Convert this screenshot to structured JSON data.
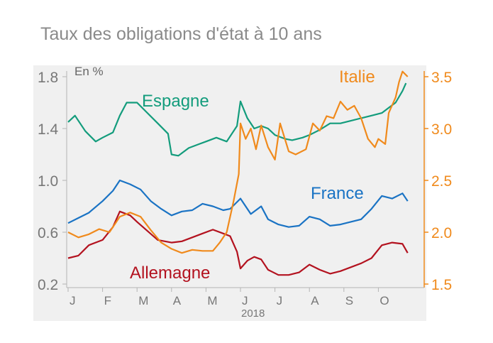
{
  "chart_data": {
    "type": "line",
    "title": "Taux des obligations d'état à 10 ans",
    "unit_label": "En %",
    "xlabel": "2018",
    "x_ticks": [
      "J",
      "F",
      "M",
      "A",
      "M",
      "J",
      "J",
      "A",
      "S",
      "O"
    ],
    "left_axis": {
      "ticks": [
        "0.2",
        "0.6",
        "1.0",
        "1.4",
        "1.8"
      ],
      "range": [
        0.2,
        1.8
      ]
    },
    "right_axis": {
      "ticks": [
        "1.5",
        "2.0",
        "2.5",
        "3.0",
        "3.5"
      ],
      "range": [
        1.5,
        3.5
      ],
      "color": "#f08a1c"
    },
    "grid": false,
    "series": [
      {
        "name": "Espagne",
        "axis": "left",
        "color": "#139c7c",
        "points": [
          [
            0,
            1.45
          ],
          [
            0.2,
            1.5
          ],
          [
            0.5,
            1.38
          ],
          [
            0.8,
            1.3
          ],
          [
            1.0,
            1.33
          ],
          [
            1.3,
            1.37
          ],
          [
            1.5,
            1.5
          ],
          [
            1.7,
            1.6
          ],
          [
            2.0,
            1.6
          ],
          [
            2.3,
            1.52
          ],
          [
            2.6,
            1.44
          ],
          [
            2.9,
            1.36
          ],
          [
            3.0,
            1.2
          ],
          [
            3.2,
            1.19
          ],
          [
            3.5,
            1.25
          ],
          [
            3.8,
            1.28
          ],
          [
            4.0,
            1.3
          ],
          [
            4.3,
            1.33
          ],
          [
            4.6,
            1.3
          ],
          [
            4.9,
            1.42
          ],
          [
            5.0,
            1.61
          ],
          [
            5.2,
            1.48
          ],
          [
            5.4,
            1.4
          ],
          [
            5.6,
            1.42
          ],
          [
            5.8,
            1.4
          ],
          [
            6.0,
            1.35
          ],
          [
            6.3,
            1.32
          ],
          [
            6.5,
            1.31
          ],
          [
            6.8,
            1.33
          ],
          [
            7.0,
            1.35
          ],
          [
            7.3,
            1.39
          ],
          [
            7.6,
            1.44
          ],
          [
            7.9,
            1.44
          ],
          [
            8.2,
            1.46
          ],
          [
            8.5,
            1.48
          ],
          [
            8.8,
            1.5
          ],
          [
            9.1,
            1.52
          ],
          [
            9.3,
            1.56
          ],
          [
            9.5,
            1.6
          ],
          [
            9.7,
            1.69
          ],
          [
            9.8,
            1.75
          ]
        ]
      },
      {
        "name": "France",
        "axis": "left",
        "color": "#1a73c4",
        "points": [
          [
            0,
            0.67
          ],
          [
            0.3,
            0.71
          ],
          [
            0.6,
            0.75
          ],
          [
            1.0,
            0.84
          ],
          [
            1.3,
            0.92
          ],
          [
            1.5,
            1.0
          ],
          [
            1.8,
            0.97
          ],
          [
            2.1,
            0.93
          ],
          [
            2.4,
            0.84
          ],
          [
            2.7,
            0.78
          ],
          [
            3.0,
            0.73
          ],
          [
            3.3,
            0.76
          ],
          [
            3.6,
            0.77
          ],
          [
            3.9,
            0.82
          ],
          [
            4.2,
            0.8
          ],
          [
            4.5,
            0.77
          ],
          [
            4.7,
            0.78
          ],
          [
            5.0,
            0.86
          ],
          [
            5.3,
            0.74
          ],
          [
            5.6,
            0.8
          ],
          [
            5.8,
            0.7
          ],
          [
            6.1,
            0.66
          ],
          [
            6.4,
            0.64
          ],
          [
            6.7,
            0.65
          ],
          [
            7.0,
            0.72
          ],
          [
            7.3,
            0.7
          ],
          [
            7.6,
            0.65
          ],
          [
            7.9,
            0.66
          ],
          [
            8.2,
            0.68
          ],
          [
            8.5,
            0.7
          ],
          [
            8.8,
            0.78
          ],
          [
            9.1,
            0.88
          ],
          [
            9.4,
            0.86
          ],
          [
            9.7,
            0.9
          ],
          [
            9.85,
            0.84
          ]
        ]
      },
      {
        "name": "Allemagne",
        "axis": "left",
        "color": "#b3121f",
        "points": [
          [
            0,
            0.4
          ],
          [
            0.3,
            0.42
          ],
          [
            0.6,
            0.5
          ],
          [
            1.0,
            0.54
          ],
          [
            1.3,
            0.64
          ],
          [
            1.5,
            0.76
          ],
          [
            1.8,
            0.73
          ],
          [
            2.0,
            0.68
          ],
          [
            2.3,
            0.61
          ],
          [
            2.6,
            0.54
          ],
          [
            3.0,
            0.52
          ],
          [
            3.3,
            0.53
          ],
          [
            3.6,
            0.56
          ],
          [
            3.9,
            0.59
          ],
          [
            4.2,
            0.62
          ],
          [
            4.5,
            0.59
          ],
          [
            4.7,
            0.57
          ],
          [
            4.9,
            0.45
          ],
          [
            5.0,
            0.32
          ],
          [
            5.2,
            0.38
          ],
          [
            5.4,
            0.41
          ],
          [
            5.6,
            0.39
          ],
          [
            5.8,
            0.31
          ],
          [
            6.1,
            0.27
          ],
          [
            6.4,
            0.27
          ],
          [
            6.7,
            0.29
          ],
          [
            7.0,
            0.35
          ],
          [
            7.3,
            0.31
          ],
          [
            7.6,
            0.28
          ],
          [
            7.9,
            0.3
          ],
          [
            8.2,
            0.33
          ],
          [
            8.5,
            0.36
          ],
          [
            8.8,
            0.4
          ],
          [
            9.1,
            0.5
          ],
          [
            9.4,
            0.52
          ],
          [
            9.7,
            0.51
          ],
          [
            9.85,
            0.44
          ]
        ]
      },
      {
        "name": "Italie",
        "axis": "right",
        "color": "#f08a1c",
        "points": [
          [
            0,
            2.0
          ],
          [
            0.3,
            1.95
          ],
          [
            0.6,
            1.98
          ],
          [
            0.9,
            2.03
          ],
          [
            1.2,
            2.0
          ],
          [
            1.5,
            2.15
          ],
          [
            1.8,
            2.19
          ],
          [
            2.1,
            2.15
          ],
          [
            2.4,
            2.02
          ],
          [
            2.7,
            1.9
          ],
          [
            3.0,
            1.84
          ],
          [
            3.3,
            1.8
          ],
          [
            3.6,
            1.83
          ],
          [
            3.9,
            1.82
          ],
          [
            4.2,
            1.82
          ],
          [
            4.4,
            1.9
          ],
          [
            4.6,
            2.0
          ],
          [
            4.8,
            2.3
          ],
          [
            4.95,
            2.56
          ],
          [
            5.0,
            3.05
          ],
          [
            5.15,
            2.9
          ],
          [
            5.3,
            3.0
          ],
          [
            5.45,
            2.8
          ],
          [
            5.6,
            3.03
          ],
          [
            5.8,
            2.82
          ],
          [
            6.0,
            2.7
          ],
          [
            6.15,
            3.05
          ],
          [
            6.4,
            2.78
          ],
          [
            6.6,
            2.75
          ],
          [
            6.9,
            2.8
          ],
          [
            7.1,
            3.05
          ],
          [
            7.3,
            2.98
          ],
          [
            7.5,
            3.12
          ],
          [
            7.7,
            3.1
          ],
          [
            7.9,
            3.26
          ],
          [
            8.1,
            3.18
          ],
          [
            8.3,
            3.22
          ],
          [
            8.5,
            3.1
          ],
          [
            8.7,
            2.9
          ],
          [
            8.9,
            2.82
          ],
          [
            9.0,
            2.9
          ],
          [
            9.2,
            2.85
          ],
          [
            9.3,
            3.15
          ],
          [
            9.5,
            3.3
          ],
          [
            9.6,
            3.45
          ],
          [
            9.7,
            3.55
          ],
          [
            9.85,
            3.5
          ]
        ]
      }
    ],
    "series_labels": [
      {
        "name": "Espagne",
        "text": "Espagne"
      },
      {
        "name": "France",
        "text": "France"
      },
      {
        "name": "Allemagne",
        "text": "Allemagne"
      },
      {
        "name": "Italie",
        "text": "Italie"
      }
    ]
  }
}
